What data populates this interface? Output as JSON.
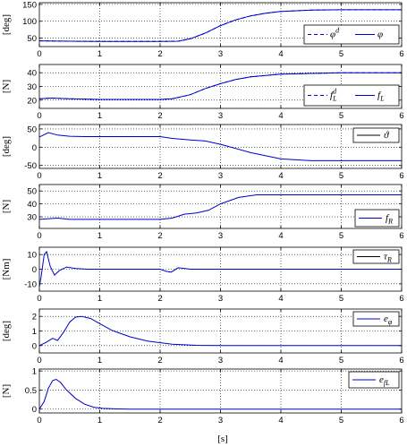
{
  "figure": {
    "xlabel": "[s]",
    "line_color": "#0000cc"
  },
  "chart_data": [
    {
      "type": "line",
      "ylabel": "[deg]",
      "xlim": [
        0,
        6
      ],
      "ylim": [
        25,
        155
      ],
      "yticks": [
        50,
        100,
        150
      ],
      "xticks": [
        0,
        1,
        2,
        3,
        4,
        5,
        6
      ],
      "grid": true,
      "legend_position": "right",
      "series": [
        {
          "name": "φ^d",
          "style": "dashed",
          "x": [
            0,
            0.5,
            1,
            1.5,
            2,
            2.3,
            2.5,
            2.75,
            3,
            3.25,
            3.5,
            3.75,
            4,
            4.5,
            5,
            6
          ],
          "y": [
            42,
            41,
            40,
            40,
            40,
            41,
            48,
            65,
            87,
            104,
            116,
            124,
            129,
            133,
            134,
            134
          ]
        },
        {
          "name": "φ",
          "style": "solid",
          "x": [
            0,
            0.5,
            1,
            1.5,
            2,
            2.3,
            2.5,
            2.75,
            3,
            3.25,
            3.5,
            3.75,
            4,
            4.5,
            5,
            6
          ],
          "y": [
            42,
            41,
            40,
            40,
            40,
            41,
            48,
            65,
            87,
            104,
            116,
            124,
            129,
            133,
            134,
            134
          ]
        }
      ]
    },
    {
      "type": "line",
      "ylabel": "[N]",
      "xlim": [
        0,
        6
      ],
      "ylim": [
        14,
        46
      ],
      "yticks": [
        20,
        30,
        40
      ],
      "xticks": [
        0,
        1,
        2,
        3,
        4,
        5,
        6
      ],
      "grid": true,
      "legend_position": "right",
      "series": [
        {
          "name": "f_L^d",
          "style": "dashed",
          "x": [
            0,
            0.2,
            0.5,
            1,
            1.5,
            2,
            2.2,
            2.5,
            2.75,
            3,
            3.25,
            3.5,
            4,
            4.5,
            5,
            6
          ],
          "y": [
            21,
            21.5,
            21,
            20.5,
            20.5,
            20.5,
            21,
            24,
            28.5,
            32,
            35,
            37,
            39,
            39.5,
            40,
            40
          ]
        },
        {
          "name": "f_L",
          "style": "solid",
          "x": [
            0,
            0.2,
            0.5,
            1,
            1.5,
            2,
            2.2,
            2.5,
            2.75,
            3,
            3.25,
            3.5,
            4,
            4.5,
            5,
            6
          ],
          "y": [
            21,
            21.5,
            21,
            20.5,
            20.5,
            20.5,
            21,
            24,
            28.5,
            32,
            35,
            37,
            39,
            39.5,
            40,
            40
          ]
        }
      ]
    },
    {
      "type": "line",
      "ylabel": "[deg]",
      "xlim": [
        0,
        6
      ],
      "ylim": [
        -58,
        62
      ],
      "yticks": [
        -50,
        0,
        50
      ],
      "xticks": [
        0,
        1,
        2,
        3,
        4,
        5,
        6
      ],
      "grid": true,
      "legend_position": "top-right",
      "series": [
        {
          "name": "ϑ",
          "style": "solid",
          "x": [
            0,
            0.15,
            0.3,
            0.5,
            0.75,
            1,
            1.5,
            2,
            2.2,
            2.5,
            2.75,
            3,
            3.5,
            4,
            4.5,
            5,
            6
          ],
          "y": [
            28,
            40,
            33,
            30,
            29,
            29,
            29,
            29,
            24,
            20,
            17,
            8,
            -15,
            -32,
            -37,
            -37,
            -37
          ]
        }
      ]
    },
    {
      "type": "line",
      "ylabel": "[N]",
      "xlim": [
        0,
        6
      ],
      "ylim": [
        21,
        55
      ],
      "yticks": [
        30,
        40,
        50
      ],
      "xticks": [
        0,
        1,
        2,
        3,
        4,
        5,
        6
      ],
      "grid": true,
      "legend_position": "bottom-right",
      "series": [
        {
          "name": "f_R",
          "style": "solid",
          "x": [
            0,
            0.3,
            0.5,
            1,
            1.5,
            2,
            2.2,
            2.4,
            2.6,
            2.8,
            3,
            3.3,
            3.6,
            4,
            4.5,
            5,
            6
          ],
          "y": [
            28,
            29,
            28,
            28,
            28,
            28,
            29,
            32,
            33,
            35,
            40,
            45,
            47,
            47,
            47,
            47,
            47
          ]
        }
      ]
    },
    {
      "type": "line",
      "ylabel": "[Nm]",
      "xlim": [
        0,
        6
      ],
      "ylim": [
        -15,
        15
      ],
      "yticks": [
        -10,
        0,
        10
      ],
      "xticks": [
        0,
        1,
        2,
        3,
        4,
        5,
        6
      ],
      "grid": true,
      "legend_position": "top-right",
      "series": [
        {
          "name": "τ_R",
          "style": "solid",
          "x": [
            0,
            0.03,
            0.08,
            0.12,
            0.18,
            0.25,
            0.33,
            0.45,
            0.6,
            0.8,
            1,
            1.5,
            2,
            2.1,
            2.18,
            2.3,
            2.5,
            3,
            4,
            5,
            6
          ],
          "y": [
            -12,
            -5,
            10,
            12,
            2,
            -4,
            -1,
            1.5,
            0.5,
            0,
            0,
            0,
            0,
            -1.5,
            -2,
            1,
            0,
            0,
            0,
            0,
            0
          ]
        }
      ]
    },
    {
      "type": "line",
      "ylabel": "[deg]",
      "xlim": [
        0,
        6
      ],
      "ylim": [
        -0.5,
        2.5
      ],
      "yticks": [
        0,
        1,
        2
      ],
      "xticks": [
        0,
        1,
        2,
        3,
        4,
        5,
        6
      ],
      "grid": true,
      "legend_position": "top-right",
      "series": [
        {
          "name": "e_φ",
          "style": "solid",
          "x": [
            0,
            0.1,
            0.22,
            0.3,
            0.4,
            0.5,
            0.6,
            0.7,
            0.85,
            1,
            1.2,
            1.5,
            1.8,
            2.2,
            2.6,
            3,
            4,
            5,
            6
          ],
          "y": [
            0,
            0.2,
            0.5,
            0.35,
            0.9,
            1.6,
            1.95,
            2.0,
            1.85,
            1.5,
            1.05,
            0.6,
            0.3,
            0.1,
            0.02,
            0,
            0,
            0,
            0
          ]
        }
      ]
    },
    {
      "type": "line",
      "ylabel": "[N]",
      "xlim": [
        0,
        6
      ],
      "ylim": [
        -0.1,
        1.05
      ],
      "yticks": [
        0,
        0.5,
        1
      ],
      "xticks": [
        0,
        1,
        2,
        3,
        4,
        5,
        6
      ],
      "grid": true,
      "legend_position": "top-right",
      "series": [
        {
          "name": "e_{f_L}",
          "style": "solid",
          "x": [
            0,
            0.08,
            0.15,
            0.22,
            0.28,
            0.35,
            0.45,
            0.6,
            0.75,
            0.9,
            1.05,
            1.2,
            1.5,
            2,
            3,
            4,
            5,
            6
          ],
          "y": [
            0,
            0.2,
            0.55,
            0.75,
            0.78,
            0.7,
            0.5,
            0.28,
            0.13,
            0.05,
            0.02,
            0.01,
            0,
            0,
            0,
            0,
            0,
            0
          ]
        }
      ]
    }
  ]
}
